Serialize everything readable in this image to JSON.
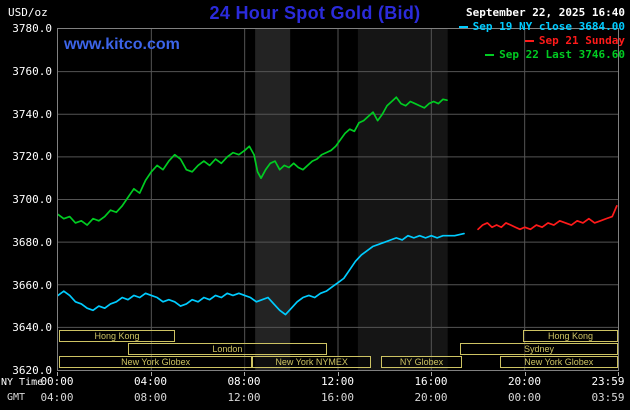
{
  "colors": {
    "background": "#000000",
    "title_blue": "#2b2bdb",
    "watermark_blue": "#3c64e8",
    "grid": "#545454",
    "plot_border": "#808080",
    "session_yellow": "#cdc363",
    "axis_text": "#ffffff",
    "cyan": "#00ccff",
    "red": "#ff1a1a",
    "green": "#00cc22"
  },
  "header": {
    "unit_label": "USD/oz",
    "title": "24 Hour Spot Gold (Bid)",
    "datetime": "September 22, 2025 16:40",
    "watermark": "www.kitco.com",
    "legend": [
      {
        "label": "Sep 19 NY close 3684.00",
        "color": "#00ccff"
      },
      {
        "label": "Sep 21 Sunday",
        "color": "#ff1a1a"
      },
      {
        "label": "Sep 22 Last 3746.60",
        "color": "#00cc22"
      }
    ]
  },
  "axes": {
    "ny_time_label": "NY Time",
    "gmt_label": "GMT",
    "y_ticks": [
      3780,
      3760,
      3740,
      3720,
      3700,
      3680,
      3660,
      3640,
      3620
    ],
    "grid_hours": [
      4,
      8,
      12,
      16,
      20
    ],
    "x_ticks": [
      {
        "hour": 0,
        "ny": "00:00",
        "gmt": "04:00"
      },
      {
        "hour": 4,
        "ny": "04:00",
        "gmt": "08:00"
      },
      {
        "hour": 8,
        "ny": "08:00",
        "gmt": "12:00"
      },
      {
        "hour": 12,
        "ny": "12:00",
        "gmt": "16:00"
      },
      {
        "hour": 16,
        "ny": "16:00",
        "gmt": "20:00"
      },
      {
        "hour": 20,
        "ny": "20:00",
        "gmt": "00:00"
      },
      {
        "hour": 23.983,
        "ny": "23:59",
        "gmt": "03:59"
      }
    ]
  },
  "sessions": [
    {
      "row": 0,
      "start": 0.05,
      "end": 5.0,
      "label": "Hong Kong"
    },
    {
      "row": 0,
      "start": 19.9,
      "end": 23.95,
      "label": "Hong Kong"
    },
    {
      "row": 1,
      "start": 3.0,
      "end": 11.5,
      "label": "London"
    },
    {
      "row": 1,
      "start": 17.2,
      "end": 23.95,
      "label": "Sydney"
    },
    {
      "row": 2,
      "start": 0.05,
      "end": 8.3,
      "label": "New York Globex"
    },
    {
      "row": 2,
      "start": 8.3,
      "end": 13.4,
      "label": "New York NYMEX"
    },
    {
      "row": 2,
      "start": 13.8,
      "end": 17.3,
      "label": "NY Globex"
    },
    {
      "row": 2,
      "start": 18.9,
      "end": 23.95,
      "label": "New York Globex"
    }
  ],
  "chart_data": {
    "type": "line",
    "title": "24 Hour Spot Gold (Bid)",
    "y_label": "USD/oz",
    "x_label": "NY Time / GMT",
    "x_range": [
      0,
      24
    ],
    "y_range": [
      3620,
      3780
    ],
    "grid": true,
    "legend_position": "top-right",
    "shaded_bands": [
      {
        "start": 8.45,
        "end": 9.95,
        "color": "#232323"
      },
      {
        "start": 12.85,
        "end": 16.7,
        "color": "#151515"
      }
    ],
    "series": [
      {
        "id": "sep19",
        "name": "Sep 19 NY close",
        "color": "#00ccff",
        "close_value": 3684.0,
        "points": [
          [
            0,
            3655
          ],
          [
            0.25,
            3657
          ],
          [
            0.5,
            3655
          ],
          [
            0.75,
            3652
          ],
          [
            1,
            3651
          ],
          [
            1.25,
            3649
          ],
          [
            1.5,
            3648
          ],
          [
            1.75,
            3650
          ],
          [
            2,
            3649
          ],
          [
            2.25,
            3651
          ],
          [
            2.5,
            3652
          ],
          [
            2.75,
            3654
          ],
          [
            3,
            3653
          ],
          [
            3.25,
            3655
          ],
          [
            3.5,
            3654
          ],
          [
            3.75,
            3656
          ],
          [
            4,
            3655
          ],
          [
            4.25,
            3654
          ],
          [
            4.5,
            3652
          ],
          [
            4.75,
            3653
          ],
          [
            5,
            3652
          ],
          [
            5.25,
            3650
          ],
          [
            5.5,
            3651
          ],
          [
            5.75,
            3653
          ],
          [
            6,
            3652
          ],
          [
            6.25,
            3654
          ],
          [
            6.5,
            3653
          ],
          [
            6.75,
            3655
          ],
          [
            7,
            3654
          ],
          [
            7.25,
            3656
          ],
          [
            7.5,
            3655
          ],
          [
            7.75,
            3656
          ],
          [
            8,
            3655
          ],
          [
            8.25,
            3654
          ],
          [
            8.5,
            3652
          ],
          [
            8.75,
            3653
          ],
          [
            9,
            3654
          ],
          [
            9.25,
            3651
          ],
          [
            9.5,
            3648
          ],
          [
            9.75,
            3646
          ],
          [
            10,
            3649
          ],
          [
            10.25,
            3652
          ],
          [
            10.5,
            3654
          ],
          [
            10.75,
            3655
          ],
          [
            11,
            3654
          ],
          [
            11.25,
            3656
          ],
          [
            11.5,
            3657
          ],
          [
            11.75,
            3659
          ],
          [
            12,
            3661
          ],
          [
            12.25,
            3663
          ],
          [
            12.5,
            3667
          ],
          [
            12.75,
            3671
          ],
          [
            13,
            3674
          ],
          [
            13.25,
            3676
          ],
          [
            13.5,
            3678
          ],
          [
            13.75,
            3679
          ],
          [
            14,
            3680
          ],
          [
            14.25,
            3681
          ],
          [
            14.5,
            3682
          ],
          [
            14.75,
            3681
          ],
          [
            15,
            3683
          ],
          [
            15.25,
            3682
          ],
          [
            15.5,
            3683
          ],
          [
            15.75,
            3682
          ],
          [
            16,
            3683
          ],
          [
            16.25,
            3682
          ],
          [
            16.5,
            3683
          ],
          [
            16.75,
            3683
          ],
          [
            17,
            3683
          ],
          [
            17.4,
            3684
          ]
        ]
      },
      {
        "id": "sep21",
        "name": "Sep 21 Sunday",
        "color": "#ff1a1a",
        "points": [
          [
            18,
            3686
          ],
          [
            18.2,
            3688
          ],
          [
            18.4,
            3689
          ],
          [
            18.6,
            3687
          ],
          [
            18.8,
            3688
          ],
          [
            19,
            3687
          ],
          [
            19.2,
            3689
          ],
          [
            19.4,
            3688
          ],
          [
            19.6,
            3687
          ],
          [
            19.8,
            3686
          ],
          [
            20,
            3687
          ],
          [
            20.25,
            3686
          ],
          [
            20.5,
            3688
          ],
          [
            20.75,
            3687
          ],
          [
            21,
            3689
          ],
          [
            21.25,
            3688
          ],
          [
            21.5,
            3690
          ],
          [
            21.75,
            3689
          ],
          [
            22,
            3688
          ],
          [
            22.25,
            3690
          ],
          [
            22.5,
            3689
          ],
          [
            22.75,
            3691
          ],
          [
            23,
            3689
          ],
          [
            23.25,
            3690
          ],
          [
            23.5,
            3691
          ],
          [
            23.75,
            3692
          ],
          [
            23.95,
            3697
          ]
        ]
      },
      {
        "id": "sep22",
        "name": "Sep 22 Last",
        "color": "#00cc22",
        "last_value": 3746.6,
        "points": [
          [
            0,
            3693
          ],
          [
            0.25,
            3691
          ],
          [
            0.5,
            3692
          ],
          [
            0.75,
            3689
          ],
          [
            1,
            3690
          ],
          [
            1.25,
            3688
          ],
          [
            1.5,
            3691
          ],
          [
            1.75,
            3690
          ],
          [
            2,
            3692
          ],
          [
            2.25,
            3695
          ],
          [
            2.5,
            3694
          ],
          [
            2.75,
            3697
          ],
          [
            3,
            3701
          ],
          [
            3.25,
            3705
          ],
          [
            3.5,
            3703
          ],
          [
            3.75,
            3709
          ],
          [
            4,
            3713
          ],
          [
            4.25,
            3716
          ],
          [
            4.5,
            3714
          ],
          [
            4.75,
            3718
          ],
          [
            5,
            3721
          ],
          [
            5.25,
            3719
          ],
          [
            5.5,
            3714
          ],
          [
            5.75,
            3713
          ],
          [
            6,
            3716
          ],
          [
            6.25,
            3718
          ],
          [
            6.5,
            3716
          ],
          [
            6.75,
            3719
          ],
          [
            7,
            3717
          ],
          [
            7.25,
            3720
          ],
          [
            7.5,
            3722
          ],
          [
            7.75,
            3721
          ],
          [
            8,
            3723
          ],
          [
            8.2,
            3725
          ],
          [
            8.4,
            3721
          ],
          [
            8.55,
            3713
          ],
          [
            8.7,
            3710
          ],
          [
            8.9,
            3714
          ],
          [
            9.1,
            3717
          ],
          [
            9.3,
            3718
          ],
          [
            9.5,
            3714
          ],
          [
            9.7,
            3716
          ],
          [
            9.9,
            3715
          ],
          [
            10.1,
            3717
          ],
          [
            10.3,
            3715
          ],
          [
            10.5,
            3714
          ],
          [
            10.7,
            3716
          ],
          [
            10.9,
            3718
          ],
          [
            11.1,
            3719
          ],
          [
            11.3,
            3721
          ],
          [
            11.5,
            3722
          ],
          [
            11.7,
            3723
          ],
          [
            11.9,
            3725
          ],
          [
            12.1,
            3728
          ],
          [
            12.3,
            3731
          ],
          [
            12.5,
            3733
          ],
          [
            12.7,
            3732
          ],
          [
            12.9,
            3736
          ],
          [
            13.1,
            3737
          ],
          [
            13.3,
            3739
          ],
          [
            13.5,
            3741
          ],
          [
            13.7,
            3737
          ],
          [
            13.9,
            3740
          ],
          [
            14.1,
            3744
          ],
          [
            14.3,
            3746
          ],
          [
            14.5,
            3748
          ],
          [
            14.7,
            3745
          ],
          [
            14.9,
            3744
          ],
          [
            15.1,
            3746
          ],
          [
            15.3,
            3745
          ],
          [
            15.5,
            3744
          ],
          [
            15.7,
            3743
          ],
          [
            15.9,
            3745
          ],
          [
            16.1,
            3746
          ],
          [
            16.3,
            3745
          ],
          [
            16.5,
            3747
          ],
          [
            16.67,
            3746.6
          ]
        ]
      }
    ]
  }
}
